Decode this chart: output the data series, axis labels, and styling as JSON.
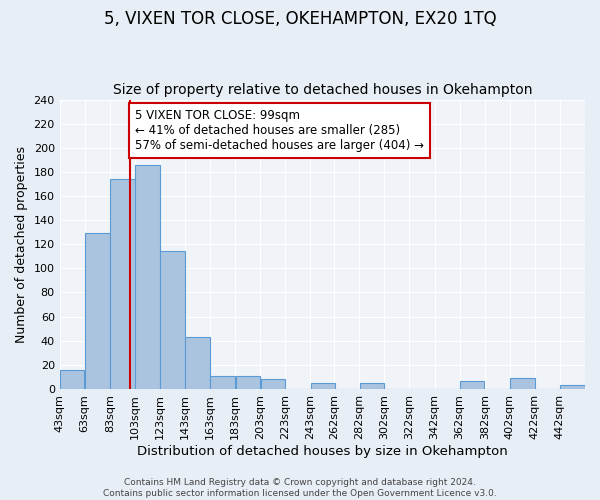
{
  "title": "5, VIXEN TOR CLOSE, OKEHAMPTON, EX20 1TQ",
  "subtitle": "Size of property relative to detached houses in Okehampton",
  "xlabel": "Distribution of detached houses by size in Okehampton",
  "ylabel": "Number of detached properties",
  "footer_line1": "Contains HM Land Registry data © Crown copyright and database right 2024.",
  "footer_line2": "Contains public sector information licensed under the Open Government Licence v3.0.",
  "bin_labels": [
    "43sqm",
    "63sqm",
    "83sqm",
    "103sqm",
    "123sqm",
    "143sqm",
    "163sqm",
    "183sqm",
    "203sqm",
    "223sqm",
    "243sqm",
    "262sqm",
    "282sqm",
    "302sqm",
    "322sqm",
    "342sqm",
    "362sqm",
    "382sqm",
    "402sqm",
    "422sqm",
    "442sqm"
  ],
  "bin_edges": [
    43,
    63,
    83,
    103,
    123,
    143,
    163,
    183,
    203,
    223,
    243,
    262,
    282,
    302,
    322,
    342,
    362,
    382,
    402,
    422,
    442
  ],
  "bar_heights": [
    16,
    129,
    174,
    186,
    114,
    43,
    11,
    11,
    8,
    0,
    5,
    0,
    5,
    0,
    0,
    0,
    7,
    0,
    9,
    0,
    3
  ],
  "bar_color": "#aac4e0",
  "bar_edge_color": "#5b9bd5",
  "vline_x": 99,
  "vline_color": "#cc0000",
  "annotation_line1": "5 VIXEN TOR CLOSE: 99sqm",
  "annotation_line2": "← 41% of detached houses are smaller (285)",
  "annotation_line3": "57% of semi-detached houses are larger (404) →",
  "annotation_box_color": "#ffffff",
  "annotation_box_edge": "#cc0000",
  "ylim": [
    0,
    240
  ],
  "yticks": [
    0,
    20,
    40,
    60,
    80,
    100,
    120,
    140,
    160,
    180,
    200,
    220,
    240
  ],
  "bg_color": "#e8eef5",
  "plot_bg_color": "#f0f4f8",
  "grid_color": "#ffffff",
  "title_fontsize": 12,
  "subtitle_fontsize": 10,
  "xlabel_fontsize": 9.5,
  "ylabel_fontsize": 9,
  "tick_fontsize": 8,
  "annotation_fontsize": 8.5,
  "footer_fontsize": 6.5
}
